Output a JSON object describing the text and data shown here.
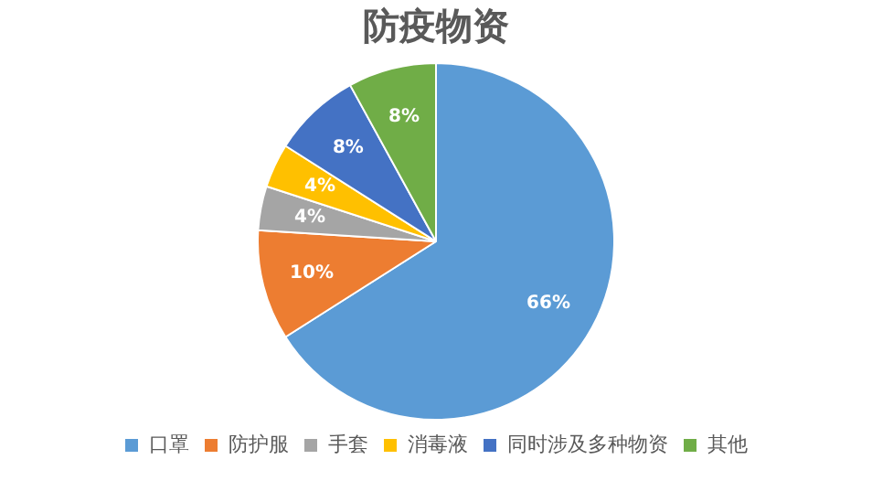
{
  "chart_data": {
    "type": "pie",
    "title": "防疫物资",
    "categories": [
      "口罩",
      "防护服",
      "手套",
      "消毒液",
      "同时涉及多种物资",
      "其他"
    ],
    "values": [
      66,
      10,
      4,
      4,
      8,
      8
    ],
    "colors": [
      "#5b9bd5",
      "#ed7d31",
      "#a5a5a5",
      "#ffc000",
      "#4472c4",
      "#70ad47"
    ],
    "value_labels": [
      "66%",
      "10%",
      "4%",
      "4%",
      "8%",
      "8%"
    ],
    "legend": "bottom"
  }
}
